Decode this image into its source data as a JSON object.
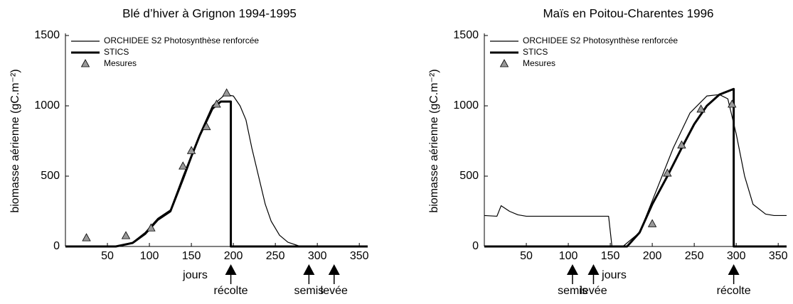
{
  "chart_data": [
    {
      "type": "line",
      "title": "Blé d’hiver à Grignon 1994-1995",
      "xlabel": "jours",
      "ylabel": "biomasse aérienne (gC.m⁻²)",
      "xlim": [
        0,
        360
      ],
      "ylim": [
        0,
        1500
      ],
      "xticks": [
        50,
        100,
        150,
        200,
        250,
        300,
        350
      ],
      "yticks": [
        0,
        500,
        1000,
        1500
      ],
      "series": [
        {
          "name": "ORCHIDEE S2 Photosynthèse renforcée",
          "color": "#000000",
          "style": "line",
          "linewidth": 1.2,
          "x": [
            0,
            60,
            80,
            95,
            110,
            125,
            140,
            150,
            160,
            175,
            190,
            200,
            208,
            215,
            222,
            230,
            238,
            245,
            255,
            265,
            280,
            360
          ],
          "values": [
            0,
            0,
            30,
            100,
            200,
            260,
            500,
            650,
            800,
            1000,
            1080,
            1070,
            1000,
            900,
            700,
            500,
            300,
            180,
            80,
            30,
            0,
            0
          ]
        },
        {
          "name": "STICS",
          "color": "#000000",
          "style": "line",
          "linewidth": 3,
          "x": [
            0,
            60,
            80,
            95,
            110,
            125,
            140,
            150,
            160,
            175,
            185,
            197,
            197,
            360
          ],
          "values": [
            0,
            0,
            25,
            90,
            190,
            250,
            480,
            640,
            790,
            980,
            1030,
            1030,
            0,
            0
          ]
        },
        {
          "name": "Mesures",
          "color": "#999999",
          "style": "markers",
          "x": [
            25,
            72,
            102,
            140,
            150,
            168,
            180,
            192
          ],
          "values": [
            60,
            75,
            130,
            570,
            680,
            850,
            1010,
            1090
          ]
        }
      ],
      "annotations": [
        {
          "text": "récolte",
          "x": 197
        },
        {
          "text": "semis",
          "x": 290
        },
        {
          "text": "levée",
          "x": 320
        }
      ]
    },
    {
      "type": "line",
      "title": "Maïs en Poitou-Charentes 1996",
      "xlabel": "jours",
      "ylabel": "biomasse aérienne (gC.m⁻²)",
      "xlim": [
        0,
        360
      ],
      "ylim": [
        0,
        1500
      ],
      "xticks": [
        50,
        100,
        150,
        200,
        250,
        300,
        350
      ],
      "yticks": [
        0,
        500,
        1000,
        1500
      ],
      "series": [
        {
          "name": "ORCHIDEE S2 Photosynthèse renforcée",
          "color": "#000000",
          "style": "line",
          "linewidth": 1.2,
          "x": [
            0,
            15,
            20,
            30,
            40,
            50,
            148,
            152,
            165,
            185,
            205,
            225,
            245,
            265,
            280,
            290,
            300,
            310,
            320,
            335,
            345,
            360
          ],
          "values": [
            220,
            215,
            290,
            250,
            225,
            215,
            215,
            0,
            0,
            100,
            400,
            700,
            950,
            1070,
            1080,
            1050,
            800,
            500,
            300,
            230,
            220,
            220
          ]
        },
        {
          "name": "STICS",
          "color": "#000000",
          "style": "line",
          "linewidth": 3,
          "x": [
            0,
            170,
            185,
            200,
            218,
            235,
            250,
            265,
            280,
            297,
            297,
            360
          ],
          "values": [
            0,
            0,
            100,
            300,
            500,
            700,
            870,
            1000,
            1080,
            1120,
            0,
            0
          ]
        },
        {
          "name": "Mesures",
          "color": "#999999",
          "style": "markers",
          "x": [
            200,
            218,
            235,
            258,
            295
          ],
          "values": [
            160,
            520,
            720,
            975,
            1010
          ]
        }
      ],
      "annotations": [
        {
          "text": "semis",
          "x": 105
        },
        {
          "text": "levée",
          "x": 130
        },
        {
          "text": "récolte",
          "x": 297
        }
      ]
    }
  ]
}
